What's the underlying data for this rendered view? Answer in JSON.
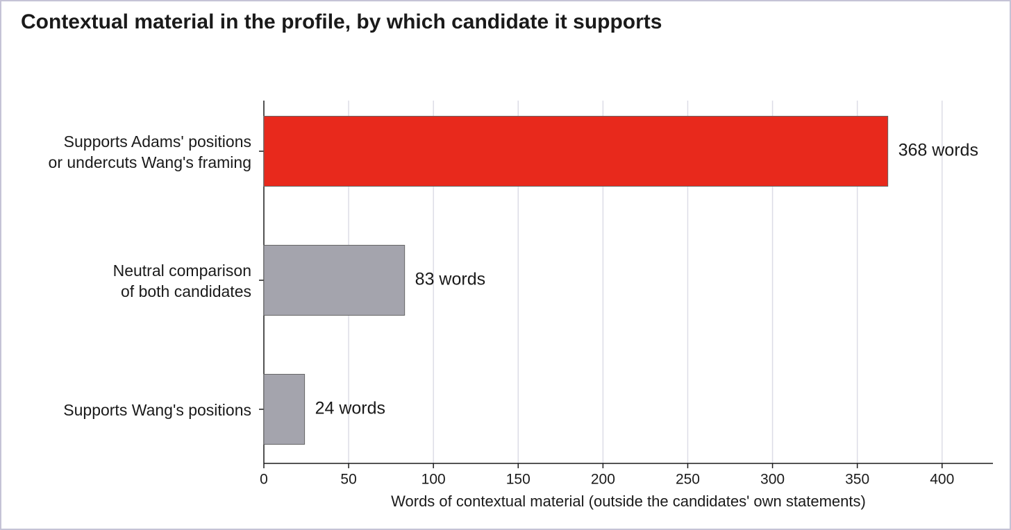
{
  "chart_data": {
    "type": "bar",
    "orientation": "horizontal",
    "title": "Contextual material in the profile, by which candidate it supports",
    "x_label": "Words of contextual material (outside the candidates' own statements)",
    "categories": [
      "Supports Adams' positions\nor undercuts Wang's framing",
      "Neutral comparison\nof both candidates",
      "Supports Wang's positions"
    ],
    "values": [
      368,
      83,
      24
    ],
    "value_labels": [
      "368 words",
      "83 words",
      "24 words"
    ],
    "colors": [
      "#e8291c",
      "#a4a4ad",
      "#a4a4ad"
    ],
    "xlim": [
      0,
      430
    ],
    "xticks": [
      0,
      50,
      100,
      150,
      200,
      250,
      300,
      350,
      400
    ],
    "grid": true
  }
}
